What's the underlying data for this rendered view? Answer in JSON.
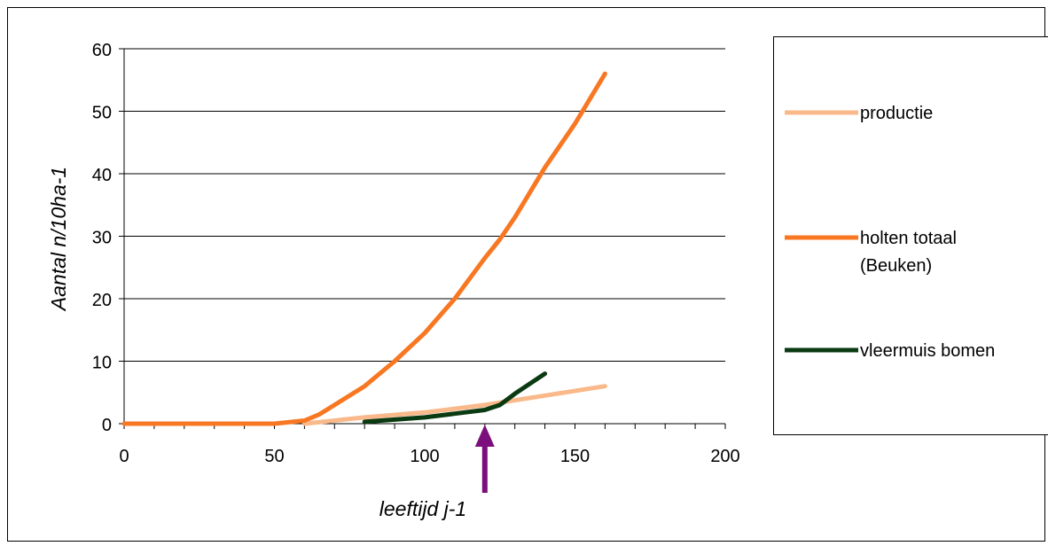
{
  "chart_data": {
    "type": "line",
    "title": "",
    "xlabel": "leeftijd j-1",
    "ylabel": "Aantal  n/10ha-1",
    "xlim": [
      0,
      200
    ],
    "ylim": [
      0,
      60
    ],
    "xticks": [
      0,
      50,
      100,
      150,
      200
    ],
    "yticks": [
      0,
      10,
      20,
      30,
      40,
      50,
      60
    ],
    "grid": "horizontal",
    "legend_position": "right",
    "annotation": {
      "type": "arrow",
      "x": 120,
      "color": "#7B0F7B"
    },
    "series": [
      {
        "name": "productie",
        "color": "#F9B98A",
        "x": [
          60,
          80,
          100,
          120,
          140,
          160
        ],
        "y": [
          0,
          1,
          1.8,
          3,
          4.5,
          6
        ]
      },
      {
        "name": "holten totaal (Beuken)",
        "legend_lines": [
          "holten totaal",
          "(Beuken)"
        ],
        "color": "#F87722",
        "x": [
          0,
          50,
          60,
          65,
          70,
          80,
          90,
          100,
          110,
          120,
          125,
          130,
          140,
          150,
          160
        ],
        "y": [
          0,
          0,
          0.5,
          1.5,
          3,
          6,
          10,
          14.5,
          20,
          26.5,
          29.5,
          33,
          41,
          48,
          56
        ]
      },
      {
        "name": "vleermuis bomen",
        "legend_label": "vleermuis bomen",
        "color": "#0A3A12",
        "x": [
          80,
          100,
          110,
          120,
          125,
          130,
          140
        ],
        "y": [
          0.3,
          1,
          1.6,
          2.2,
          3,
          4.8,
          8
        ]
      }
    ]
  }
}
